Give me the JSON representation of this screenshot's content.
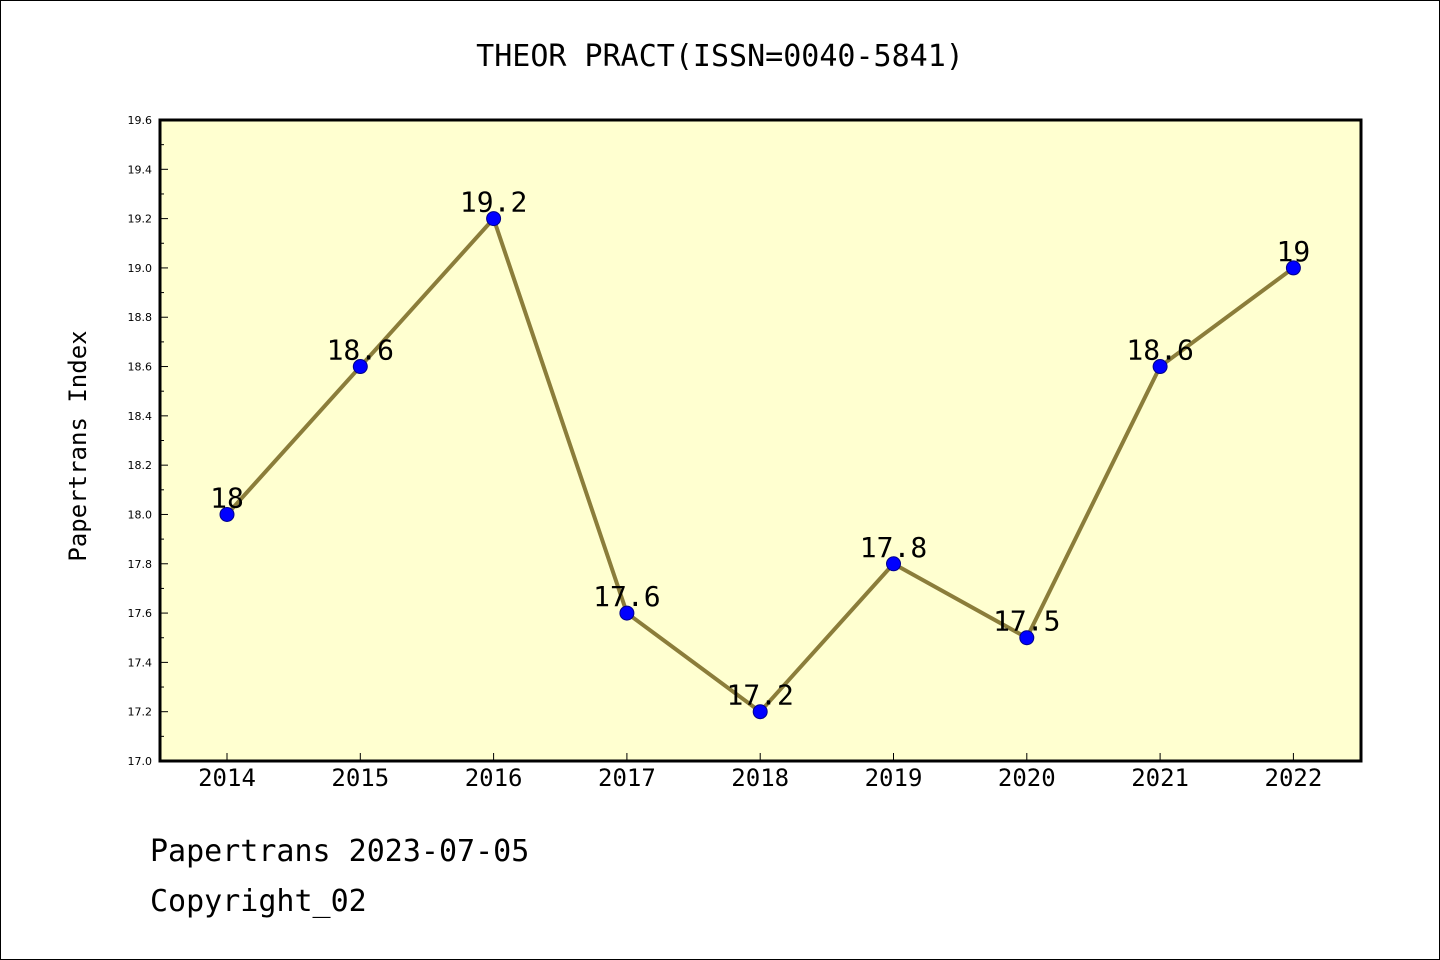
{
  "chart_data": {
    "type": "line",
    "title": "THEOR PRACT(ISSN=0040-5841)",
    "xlabel": "",
    "ylabel": "Papertrans Index",
    "categories": [
      "2014",
      "2015",
      "2016",
      "2017",
      "2018",
      "2019",
      "2020",
      "2021",
      "2022"
    ],
    "series": [
      {
        "values": [
          18,
          18.6,
          19.2,
          17.6,
          17.2,
          17.8,
          17.5,
          18.6,
          19
        ],
        "data_labels": [
          "18",
          "18.6",
          "19.2",
          "17.6",
          "17.2",
          "17.8",
          "17.5",
          "18.6",
          "19"
        ],
        "line_color": "#8b7d3a",
        "marker_color": "#0000ff"
      }
    ],
    "ylim": [
      17.0,
      19.6
    ],
    "y_ticks": [
      "17.0",
      "17.2",
      "17.4",
      "17.6",
      "17.8",
      "18.0",
      "18.2",
      "18.4",
      "18.6",
      "18.8",
      "19.0",
      "19.2",
      "19.4",
      "19.6"
    ],
    "plot_background": "#ffffd0",
    "grid": false
  },
  "footer": {
    "line1": "Papertrans 2023-07-05",
    "line2": "Copyright_02"
  }
}
